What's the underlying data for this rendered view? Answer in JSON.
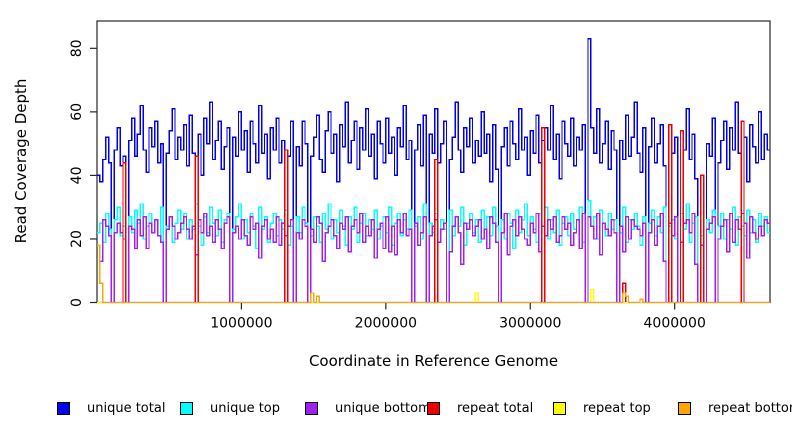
{
  "figure": {
    "background": "#ffffff"
  },
  "chart_data": {
    "type": "step-line",
    "title": "",
    "xlabel": "Coordinate in Reference Genome",
    "ylabel": "Read Coverage Depth",
    "xlim": [
      0,
      4660000
    ],
    "ylim": [
      0,
      88.6
    ],
    "grid": false,
    "legend_position": "bottom",
    "bin_size": 20000,
    "x_start": 0,
    "xticks": [
      {
        "value": 1000000,
        "label": "1000000"
      },
      {
        "value": 2000000,
        "label": "2000000"
      },
      {
        "value": 3000000,
        "label": "3000000"
      },
      {
        "value": 4000000,
        "label": "4000000"
      }
    ],
    "yticks": [
      {
        "value": 0,
        "label": "0"
      },
      {
        "value": 20,
        "label": "20"
      },
      {
        "value": 40,
        "label": "40"
      },
      {
        "value": 60,
        "label": "60"
      },
      {
        "value": 80,
        "label": "80"
      }
    ],
    "series": [
      {
        "name": "unique total",
        "color": "#0000EE",
        "values": [
          40,
          38,
          45,
          52,
          44,
          0,
          48,
          55,
          43,
          46,
          0,
          51,
          58,
          46,
          53,
          62,
          48,
          41,
          55,
          49,
          57,
          44,
          50,
          0,
          47,
          54,
          61,
          45,
          52,
          48,
          56,
          43,
          59,
          47,
          46,
          53,
          40,
          58,
          50,
          63,
          45,
          51,
          57,
          42,
          49,
          55,
          0,
          52,
          46,
          60,
          48,
          54,
          41,
          57,
          50,
          44,
          62,
          47,
          53,
          39,
          55,
          48,
          58,
          44,
          51,
          48,
          46,
          57,
          0,
          49,
          43,
          57,
          50,
          0,
          46,
          52,
          59,
          45,
          41,
          54,
          60,
          47,
          53,
          38,
          56,
          49,
          63,
          44,
          51,
          57,
          42,
          55,
          48,
          61,
          46,
          53,
          39,
          57,
          50,
          44,
          58,
          47,
          52,
          40,
          55,
          49,
          62,
          45,
          51,
          0,
          48,
          56,
          43,
          59,
          0,
          53,
          47,
          61,
          44,
          50,
          57,
          0,
          45,
          52,
          63,
          48,
          41,
          55,
          49,
          58,
          44,
          51,
          46,
          60,
          47,
          53,
          38,
          56,
          42,
          0,
          49,
          55,
          43,
          57,
          50,
          45,
          61,
          48,
          52,
          40,
          54,
          47,
          59,
          44,
          51,
          55,
          48,
          62,
          45,
          53,
          39,
          57,
          50,
          46,
          58,
          43,
          52,
          48,
          56,
          0,
          83,
          55,
          47,
          61,
          44,
          50,
          57,
          42,
          54,
          48,
          0,
          51,
          45,
          59,
          46,
          52,
          63,
          47,
          41,
          55,
          0,
          49,
          58,
          44,
          50,
          56,
          43,
          0,
          56,
          47,
          52,
          0,
          54,
          48,
          61,
          45,
          53,
          39,
          0,
          40,
          0,
          50,
          46,
          58,
          0,
          44,
          51,
          57,
          42,
          55,
          48,
          63,
          47,
          57,
          52,
          38,
          56,
          49,
          44,
          60,
          45,
          53,
          48
        ]
      },
      {
        "name": "unique top",
        "color": "#00FFFF",
        "values": [
          22,
          25,
          19,
          28,
          23,
          0,
          26,
          30,
          21,
          24,
          0,
          27,
          22,
          29,
          25,
          31,
          20,
          24,
          28,
          22,
          26,
          21,
          30,
          0,
          24,
          27,
          19,
          25,
          29,
          23,
          28,
          20,
          26,
          23,
          31,
          24,
          18,
          27,
          22,
          30,
          25,
          21,
          29,
          19,
          26,
          28,
          0,
          23,
          27,
          31,
          20,
          26,
          22,
          28,
          24,
          17,
          30,
          23,
          27,
          19,
          25,
          28,
          21,
          26,
          23,
          29,
          18,
          24,
          0,
          27,
          22,
          30,
          25,
          0,
          21,
          27,
          24,
          19,
          28,
          23,
          31,
          20,
          26,
          22,
          29,
          24,
          18,
          27,
          23,
          30,
          19,
          25,
          28,
          21,
          26,
          23,
          29,
          20,
          24,
          27,
          22,
          30,
          18,
          25,
          28,
          21,
          26,
          23,
          29,
          0,
          24,
          27,
          20,
          31,
          0,
          25,
          22,
          28,
          19,
          26,
          23,
          0,
          29,
          21,
          27,
          24,
          30,
          18,
          25,
          28,
          22,
          26,
          19,
          29,
          23,
          27,
          21,
          30,
          24,
          0,
          26,
          20,
          28,
          25,
          17,
          29,
          22,
          26,
          31,
          21,
          27,
          23,
          19,
          28,
          24,
          30,
          20,
          26,
          22,
          29,
          18,
          25,
          27,
          21,
          28,
          23,
          26,
          30,
          19,
          0,
          32,
          24,
          27,
          20,
          29,
          25,
          21,
          28,
          23,
          26,
          0,
          22,
          30,
          19,
          26,
          23,
          28,
          24,
          18,
          27,
          0,
          25,
          29,
          21,
          27,
          22,
          30,
          0,
          24,
          26,
          20,
          0,
          28,
          23,
          31,
          19,
          25,
          27,
          0,
          21,
          0,
          26,
          22,
          29,
          0,
          24,
          28,
          20,
          26,
          23,
          30,
          18,
          27,
          24,
          21,
          29,
          22,
          26,
          19,
          28,
          24,
          27,
          22
        ]
      },
      {
        "name": "unique bottom",
        "color": "#A020F0",
        "values": [
          18,
          13,
          26,
          24,
          21,
          0,
          22,
          25,
          22,
          20,
          0,
          24,
          23,
          17,
          26,
          21,
          27,
          17,
          25,
          22,
          26,
          21,
          19,
          0,
          23,
          27,
          24,
          20,
          22,
          25,
          27,
          23,
          20,
          24,
          15,
          26,
          22,
          28,
          21,
          24,
          19,
          26,
          23,
          17,
          25,
          27,
          0,
          22,
          24,
          20,
          26,
          21,
          18,
          27,
          23,
          25,
          14,
          24,
          26,
          20,
          23,
          19,
          27,
          18,
          25,
          21,
          24,
          26,
          0,
          22,
          20,
          26,
          24,
          0,
          23,
          19,
          27,
          25,
          13,
          22,
          24,
          26,
          21,
          17,
          25,
          23,
          27,
          16,
          24,
          26,
          22,
          28,
          19,
          24,
          21,
          26,
          14,
          23,
          25,
          17,
          27,
          16,
          24,
          15,
          26,
          22,
          28,
          21,
          23,
          0,
          25,
          18,
          22,
          27,
          0,
          21,
          24,
          26,
          19,
          23,
          25,
          0,
          16,
          24,
          27,
          22,
          12,
          25,
          23,
          26,
          21,
          24,
          26,
          20,
          23,
          17,
          27,
          25,
          19,
          0,
          22,
          28,
          15,
          24,
          26,
          21,
          27,
          23,
          20,
          18,
          25,
          22,
          28,
          16,
          24,
          21,
          26,
          23,
          27,
          19,
          21,
          27,
          23,
          25,
          18,
          22,
          26,
          17,
          28,
          0,
          27,
          24,
          20,
          28,
          15,
          25,
          23,
          21,
          26,
          22,
          0,
          24,
          16,
          27,
          20,
          26,
          24,
          23,
          21,
          25,
          0,
          22,
          26,
          18,
          24,
          28,
          13,
          0,
          25,
          21,
          27,
          0,
          19,
          25,
          26,
          22,
          28,
          12,
          0,
          18,
          0,
          23,
          25,
          27,
          0,
          20,
          24,
          26,
          16,
          28,
          19,
          26,
          23,
          28,
          25,
          14,
          27,
          22,
          20,
          24,
          21,
          26,
          25
        ]
      },
      {
        "name": "repeat total",
        "color": "#EE0000",
        "baseline": 0,
        "spikes": [
          {
            "i": 9,
            "v": 44
          },
          {
            "i": 34,
            "v": 46
          },
          {
            "i": 65,
            "v": 48
          },
          {
            "i": 117,
            "v": 45
          },
          {
            "i": 154,
            "v": 55
          },
          {
            "i": 182,
            "v": 6
          },
          {
            "i": 198,
            "v": 56
          },
          {
            "i": 202,
            "v": 54
          },
          {
            "i": 209,
            "v": 40
          },
          {
            "i": 223,
            "v": 57
          }
        ]
      },
      {
        "name": "repeat top",
        "color": "#FFFF00",
        "baseline": 0,
        "spikes": [
          {
            "i": 131,
            "v": 3
          },
          {
            "i": 171,
            "v": 4
          }
        ]
      },
      {
        "name": "repeat bottom",
        "color": "#FFA500",
        "baseline": 0,
        "spikes": [
          {
            "i": 0,
            "v": 18
          },
          {
            "i": 1,
            "v": 6
          },
          {
            "i": 74,
            "v": 3
          },
          {
            "i": 76,
            "v": 2
          },
          {
            "i": 182,
            "v": 3
          },
          {
            "i": 183,
            "v": 2
          },
          {
            "i": 188,
            "v": 1
          }
        ]
      }
    ]
  }
}
